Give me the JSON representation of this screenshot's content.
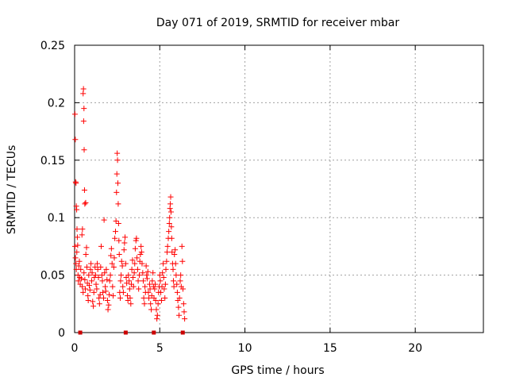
{
  "chart_data": {
    "type": "scatter",
    "title": "Day 071 of 2019, SRMTID for receiver mbar",
    "xlabel": "GPS time / hours",
    "ylabel": "SRMTID / TECUs",
    "xlim": [
      0,
      24
    ],
    "ylim": [
      0,
      0.25
    ],
    "grid": true,
    "marker": "+",
    "colors": {
      "points": "#ff0000",
      "gaps": "#cc0000",
      "grid": "#a0a0a0",
      "axes": "#000000"
    },
    "x_ticks": [
      {
        "value": 0,
        "label": "0"
      },
      {
        "value": 5,
        "label": "5"
      },
      {
        "value": 10,
        "label": "10"
      },
      {
        "value": 15,
        "label": "15"
      },
      {
        "value": 20,
        "label": "20"
      }
    ],
    "y_ticks": [
      {
        "value": 0,
        "label": "0"
      },
      {
        "value": 0.05,
        "label": "0.05"
      },
      {
        "value": 0.1,
        "label": "0.1"
      },
      {
        "value": 0.15,
        "label": "0.15"
      },
      {
        "value": 0.2,
        "label": "0.2"
      },
      {
        "value": 0.25,
        "label": "0.25"
      }
    ],
    "baseline_markers_x": [
      0.33,
      3.0,
      4.65,
      6.35
    ],
    "series": [
      {
        "name": "SRMTID",
        "points": [
          [
            0.02,
            0.19
          ],
          [
            0.04,
            0.168
          ],
          [
            0.06,
            0.131
          ],
          [
            0.08,
            0.13
          ],
          [
            0.1,
            0.11
          ],
          [
            0.12,
            0.107
          ],
          [
            0.14,
            0.09
          ],
          [
            0.02,
            0.075
          ],
          [
            0.05,
            0.065
          ],
          [
            0.08,
            0.06
          ],
          [
            0.1,
            0.055
          ],
          [
            0.13,
            0.07
          ],
          [
            0.16,
            0.083
          ],
          [
            0.18,
            0.076
          ],
          [
            0.2,
            0.05
          ],
          [
            0.22,
            0.045
          ],
          [
            0.25,
            0.058
          ],
          [
            0.28,
            0.062
          ],
          [
            0.3,
            0.048
          ],
          [
            0.33,
            0.042
          ],
          [
            0.36,
            0.055
          ],
          [
            0.4,
            0.047
          ],
          [
            0.43,
            0.085
          ],
          [
            0.46,
            0.09
          ],
          [
            0.5,
            0.208
          ],
          [
            0.52,
            0.212
          ],
          [
            0.55,
            0.195
          ],
          [
            0.53,
            0.184
          ],
          [
            0.56,
            0.159
          ],
          [
            0.58,
            0.124
          ],
          [
            0.6,
            0.112
          ],
          [
            0.65,
            0.113
          ],
          [
            0.45,
            0.04
          ],
          [
            0.5,
            0.035
          ],
          [
            0.55,
            0.052
          ],
          [
            0.6,
            0.046
          ],
          [
            0.63,
            0.038
          ],
          [
            0.66,
            0.068
          ],
          [
            0.7,
            0.074
          ],
          [
            0.72,
            0.057
          ],
          [
            0.75,
            0.043
          ],
          [
            0.78,
            0.032
          ],
          [
            0.8,
            0.028
          ],
          [
            0.83,
            0.05
          ],
          [
            0.86,
            0.041
          ],
          [
            0.9,
            0.037
          ],
          [
            0.93,
            0.055
          ],
          [
            0.96,
            0.06
          ],
          [
            1.0,
            0.045
          ],
          [
            1.03,
            0.052
          ],
          [
            1.06,
            0.027
          ],
          [
            1.1,
            0.023
          ],
          [
            1.13,
            0.035
          ],
          [
            1.16,
            0.048
          ],
          [
            1.2,
            0.057
          ],
          [
            1.23,
            0.05
          ],
          [
            1.26,
            0.042
          ],
          [
            1.3,
            0.038
          ],
          [
            1.33,
            0.06
          ],
          [
            1.36,
            0.055
          ],
          [
            1.4,
            0.048
          ],
          [
            1.43,
            0.03
          ],
          [
            1.46,
            0.025
          ],
          [
            1.5,
            0.033
          ],
          [
            1.53,
            0.057
          ],
          [
            1.56,
            0.075
          ],
          [
            1.6,
            0.05
          ],
          [
            1.63,
            0.045
          ],
          [
            1.66,
            0.035
          ],
          [
            1.7,
            0.03
          ],
          [
            1.73,
            0.098
          ],
          [
            1.76,
            0.052
          ],
          [
            1.8,
            0.04
          ],
          [
            1.83,
            0.036
          ],
          [
            1.86,
            0.055
          ],
          [
            1.9,
            0.046
          ],
          [
            1.93,
            0.028
          ],
          [
            1.96,
            0.02
          ],
          [
            2.0,
            0.024
          ],
          [
            2.03,
            0.033
          ],
          [
            2.06,
            0.045
          ],
          [
            2.1,
            0.05
          ],
          [
            2.13,
            0.067
          ],
          [
            2.16,
            0.073
          ],
          [
            2.2,
            0.06
          ],
          [
            2.23,
            0.04
          ],
          [
            2.26,
            0.032
          ],
          [
            2.3,
            0.057
          ],
          [
            2.33,
            0.065
          ],
          [
            2.36,
            0.082
          ],
          [
            2.4,
            0.088
          ],
          [
            2.43,
            0.097
          ],
          [
            2.46,
            0.122
          ],
          [
            2.48,
            0.138
          ],
          [
            2.5,
            0.156
          ],
          [
            2.52,
            0.15
          ],
          [
            2.54,
            0.13
          ],
          [
            2.56,
            0.112
          ],
          [
            2.58,
            0.095
          ],
          [
            2.6,
            0.08
          ],
          [
            2.62,
            0.068
          ],
          [
            2.65,
            0.035
          ],
          [
            2.68,
            0.03
          ],
          [
            2.7,
            0.045
          ],
          [
            2.73,
            0.05
          ],
          [
            2.76,
            0.062
          ],
          [
            2.8,
            0.058
          ],
          [
            2.83,
            0.04
          ],
          [
            2.86,
            0.035
          ],
          [
            2.9,
            0.072
          ],
          [
            2.93,
            0.078
          ],
          [
            2.96,
            0.083
          ],
          [
            3.0,
            0.06
          ],
          [
            3.03,
            0.048
          ],
          [
            3.06,
            0.043
          ],
          [
            3.1,
            0.032
          ],
          [
            3.13,
            0.028
          ],
          [
            3.16,
            0.05
          ],
          [
            3.2,
            0.045
          ],
          [
            3.23,
            0.038
          ],
          [
            3.26,
            0.03
          ],
          [
            3.3,
            0.025
          ],
          [
            3.33,
            0.042
          ],
          [
            3.36,
            0.055
          ],
          [
            3.4,
            0.063
          ],
          [
            3.43,
            0.048
          ],
          [
            3.46,
            0.04
          ],
          [
            3.5,
            0.052
          ],
          [
            3.53,
            0.06
          ],
          [
            3.56,
            0.073
          ],
          [
            3.6,
            0.08
          ],
          [
            3.63,
            0.082
          ],
          [
            3.66,
            0.065
          ],
          [
            3.7,
            0.055
          ],
          [
            3.73,
            0.045
          ],
          [
            3.76,
            0.038
          ],
          [
            3.8,
            0.05
          ],
          [
            3.83,
            0.062
          ],
          [
            3.86,
            0.068
          ],
          [
            3.9,
            0.075
          ],
          [
            3.93,
            0.07
          ],
          [
            3.96,
            0.06
          ],
          [
            4.0,
            0.052
          ],
          [
            4.03,
            0.045
          ],
          [
            4.06,
            0.03
          ],
          [
            4.1,
            0.025
          ],
          [
            4.13,
            0.04
          ],
          [
            4.16,
            0.035
          ],
          [
            4.2,
            0.058
          ],
          [
            4.23,
            0.05
          ],
          [
            4.26,
            0.047
          ],
          [
            4.3,
            0.053
          ],
          [
            4.33,
            0.035
          ],
          [
            4.36,
            0.03
          ],
          [
            4.4,
            0.042
          ],
          [
            4.43,
            0.038
          ],
          [
            4.46,
            0.025
          ],
          [
            4.5,
            0.02
          ],
          [
            4.53,
            0.032
          ],
          [
            4.56,
            0.045
          ],
          [
            4.6,
            0.052
          ],
          [
            4.63,
            0.04
          ],
          [
            4.66,
            0.03
          ],
          [
            4.7,
            0.038
          ],
          [
            4.73,
            0.042
          ],
          [
            4.76,
            0.028
          ],
          [
            4.8,
            0.02
          ],
          [
            4.83,
            0.012
          ],
          [
            4.86,
            0.015
          ],
          [
            4.9,
            0.025
          ],
          [
            4.93,
            0.035
          ],
          [
            4.96,
            0.04
          ],
          [
            5.0,
            0.05
          ],
          [
            5.03,
            0.045
          ],
          [
            5.06,
            0.035
          ],
          [
            5.1,
            0.028
          ],
          [
            5.13,
            0.04
          ],
          [
            5.16,
            0.052
          ],
          [
            5.2,
            0.06
          ],
          [
            5.23,
            0.048
          ],
          [
            5.26,
            0.038
          ],
          [
            5.3,
            0.03
          ],
          [
            5.33,
            0.042
          ],
          [
            5.36,
            0.055
          ],
          [
            5.4,
            0.062
          ],
          [
            5.43,
            0.07
          ],
          [
            5.46,
            0.075
          ],
          [
            5.5,
            0.082
          ],
          [
            5.53,
            0.088
          ],
          [
            5.56,
            0.095
          ],
          [
            5.58,
            0.1
          ],
          [
            5.6,
            0.108
          ],
          [
            5.62,
            0.112
          ],
          [
            5.64,
            0.118
          ],
          [
            5.66,
            0.105
          ],
          [
            5.68,
            0.092
          ],
          [
            5.7,
            0.082
          ],
          [
            5.72,
            0.07
          ],
          [
            5.75,
            0.06
          ],
          [
            5.78,
            0.055
          ],
          [
            5.8,
            0.045
          ],
          [
            5.83,
            0.04
          ],
          [
            5.86,
            0.068
          ],
          [
            5.9,
            0.072
          ],
          [
            5.93,
            0.06
          ],
          [
            5.96,
            0.05
          ],
          [
            6.0,
            0.042
          ],
          [
            6.03,
            0.035
          ],
          [
            6.06,
            0.028
          ],
          [
            6.1,
            0.022
          ],
          [
            6.13,
            0.015
          ],
          [
            6.16,
            0.03
          ],
          [
            6.2,
            0.045
          ],
          [
            6.23,
            0.05
          ],
          [
            6.26,
            0.04
          ],
          [
            6.3,
            0.075
          ],
          [
            6.33,
            0.062
          ],
          [
            6.36,
            0.038
          ],
          [
            6.4,
            0.025
          ],
          [
            6.43,
            0.018
          ],
          [
            6.46,
            0.012
          ]
        ]
      }
    ]
  }
}
